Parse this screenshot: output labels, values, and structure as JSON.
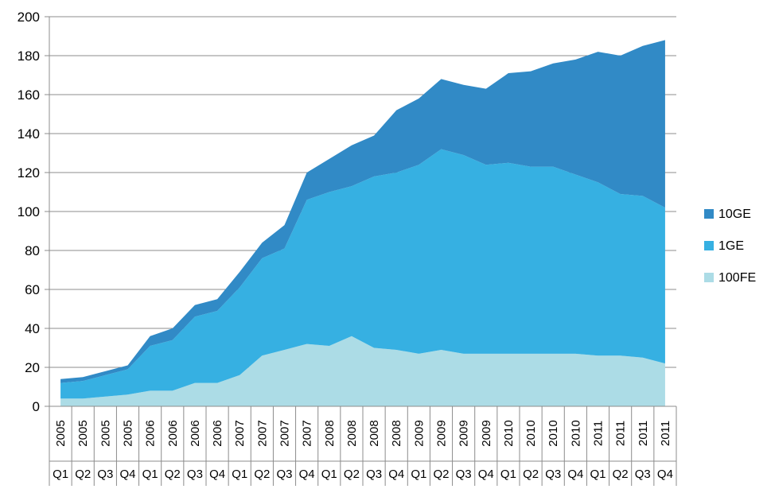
{
  "chart_data": {
    "type": "area",
    "stacked": true,
    "categories": [
      {
        "year": "2005",
        "quarter": "Q1"
      },
      {
        "year": "2005",
        "quarter": "Q2"
      },
      {
        "year": "2005",
        "quarter": "Q3"
      },
      {
        "year": "2005",
        "quarter": "Q4"
      },
      {
        "year": "2006",
        "quarter": "Q1"
      },
      {
        "year": "2006",
        "quarter": "Q2"
      },
      {
        "year": "2006",
        "quarter": "Q3"
      },
      {
        "year": "2006",
        "quarter": "Q4"
      },
      {
        "year": "2007",
        "quarter": "Q1"
      },
      {
        "year": "2007",
        "quarter": "Q2"
      },
      {
        "year": "2007",
        "quarter": "Q3"
      },
      {
        "year": "2007",
        "quarter": "Q4"
      },
      {
        "year": "2008",
        "quarter": "Q1"
      },
      {
        "year": "2008",
        "quarter": "Q2"
      },
      {
        "year": "2008",
        "quarter": "Q3"
      },
      {
        "year": "2008",
        "quarter": "Q4"
      },
      {
        "year": "2009",
        "quarter": "Q1"
      },
      {
        "year": "2009",
        "quarter": "Q2"
      },
      {
        "year": "2009",
        "quarter": "Q3"
      },
      {
        "year": "2009",
        "quarter": "Q4"
      },
      {
        "year": "2010",
        "quarter": "Q1"
      },
      {
        "year": "2010",
        "quarter": "Q2"
      },
      {
        "year": "2010",
        "quarter": "Q3"
      },
      {
        "year": "2010",
        "quarter": "Q4"
      },
      {
        "year": "2011",
        "quarter": "Q1"
      },
      {
        "year": "2011",
        "quarter": "Q2"
      },
      {
        "year": "2011",
        "quarter": "Q3"
      },
      {
        "year": "2011",
        "quarter": "Q4"
      }
    ],
    "series": [
      {
        "name": "100FE",
        "color": "#acdce6",
        "values": [
          4,
          4,
          5,
          6,
          8,
          8,
          12,
          12,
          16,
          26,
          29,
          32,
          31,
          36,
          30,
          29,
          27,
          29,
          27,
          27,
          27,
          27,
          27,
          27,
          26,
          26,
          25,
          22
        ]
      },
      {
        "name": "1GE",
        "color": "#36b0e2",
        "values": [
          8,
          9,
          11,
          13,
          23,
          26,
          34,
          37,
          45,
          50,
          52,
          74,
          79,
          77,
          88,
          91,
          97,
          103,
          102,
          97,
          98,
          96,
          96,
          92,
          89,
          83,
          83,
          80
        ]
      },
      {
        "name": "10GE",
        "color": "#318ac6",
        "values": [
          2,
          2,
          2,
          2,
          5,
          6,
          6,
          6,
          8,
          8,
          12,
          14,
          17,
          21,
          21,
          32,
          34,
          36,
          36,
          39,
          46,
          49,
          53,
          59,
          67,
          71,
          77,
          86
        ]
      }
    ],
    "title": "",
    "xlabel": "",
    "ylabel": "",
    "ylim": [
      0,
      200
    ],
    "yticks": [
      0,
      20,
      40,
      60,
      80,
      100,
      120,
      140,
      160,
      180,
      200
    ],
    "grid": true,
    "legend": {
      "position": "right",
      "order": [
        "10GE",
        "1GE",
        "100FE"
      ]
    }
  }
}
